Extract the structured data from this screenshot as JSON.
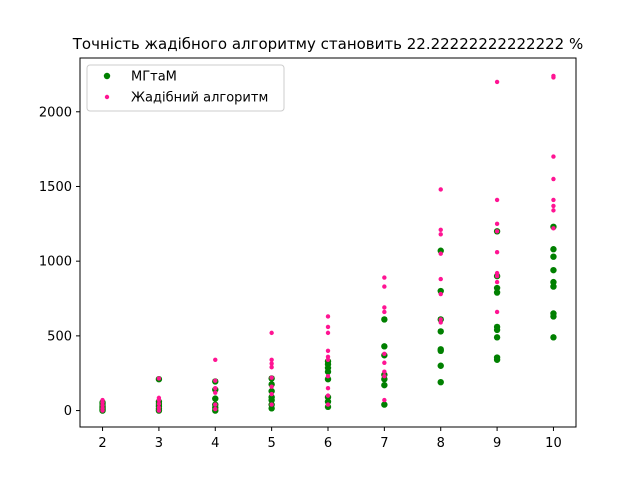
{
  "chart_data": {
    "type": "scatter",
    "title": "Точність жадібного алгоритму становить  22.22222222222222 %",
    "xlabel": "",
    "ylabel": "",
    "xlim": [
      1.6,
      10.4
    ],
    "ylim": [
      -110,
      2360
    ],
    "xticks": [
      2,
      3,
      4,
      5,
      6,
      7,
      8,
      9,
      10
    ],
    "yticks": [
      0,
      500,
      1000,
      1500,
      2000
    ],
    "grid": false,
    "legend_position": "top-left",
    "series": [
      {
        "name": "МГтаМ",
        "color": "#008000",
        "points": [
          [
            2,
            0
          ],
          [
            2,
            10
          ],
          [
            2,
            20
          ],
          [
            2,
            30
          ],
          [
            2,
            45
          ],
          [
            2,
            55
          ],
          [
            3,
            0
          ],
          [
            3,
            15
          ],
          [
            3,
            30
          ],
          [
            3,
            45
          ],
          [
            3,
            60
          ],
          [
            3,
            210
          ],
          [
            4,
            0
          ],
          [
            4,
            20
          ],
          [
            4,
            40
          ],
          [
            4,
            80
          ],
          [
            4,
            140
          ],
          [
            4,
            195
          ],
          [
            5,
            15
          ],
          [
            5,
            40
          ],
          [
            5,
            70
          ],
          [
            5,
            90
          ],
          [
            5,
            130
          ],
          [
            5,
            175
          ],
          [
            5,
            215
          ],
          [
            6,
            25
          ],
          [
            6,
            60
          ],
          [
            6,
            90
          ],
          [
            6,
            210
          ],
          [
            6,
            260
          ],
          [
            6,
            285
          ],
          [
            6,
            310
          ],
          [
            6,
            330
          ],
          [
            7,
            40
          ],
          [
            7,
            170
          ],
          [
            7,
            210
          ],
          [
            7,
            240
          ],
          [
            7,
            370
          ],
          [
            7,
            430
          ],
          [
            7,
            610
          ],
          [
            8,
            190
          ],
          [
            8,
            300
          ],
          [
            8,
            400
          ],
          [
            8,
            410
          ],
          [
            8,
            530
          ],
          [
            8,
            610
          ],
          [
            8,
            800
          ],
          [
            8,
            1070
          ],
          [
            9,
            340
          ],
          [
            9,
            355
          ],
          [
            9,
            490
          ],
          [
            9,
            540
          ],
          [
            9,
            560
          ],
          [
            9,
            790
          ],
          [
            9,
            820
          ],
          [
            9,
            900
          ],
          [
            9,
            1200
          ],
          [
            10,
            490
          ],
          [
            10,
            630
          ],
          [
            10,
            650
          ],
          [
            10,
            830
          ],
          [
            10,
            860
          ],
          [
            10,
            940
          ],
          [
            10,
            1030
          ],
          [
            10,
            1080
          ],
          [
            10,
            1230
          ]
        ]
      },
      {
        "name": "Жадібний алгоритм",
        "color": "#ff1493",
        "points": [
          [
            2,
            0
          ],
          [
            2,
            15
          ],
          [
            2,
            35
          ],
          [
            2,
            55
          ],
          [
            2,
            70
          ],
          [
            3,
            0
          ],
          [
            3,
            20
          ],
          [
            3,
            45
          ],
          [
            3,
            70
          ],
          [
            3,
            85
          ],
          [
            3,
            215
          ],
          [
            4,
            10
          ],
          [
            4,
            40
          ],
          [
            4,
            120
          ],
          [
            4,
            150
          ],
          [
            4,
            200
          ],
          [
            4,
            340
          ],
          [
            5,
            40
          ],
          [
            5,
            110
          ],
          [
            5,
            160
          ],
          [
            5,
            220
          ],
          [
            5,
            290
          ],
          [
            5,
            315
          ],
          [
            5,
            340
          ],
          [
            5,
            520
          ],
          [
            6,
            40
          ],
          [
            6,
            100
          ],
          [
            6,
            150
          ],
          [
            6,
            230
          ],
          [
            6,
            340
          ],
          [
            6,
            360
          ],
          [
            6,
            400
          ],
          [
            6,
            520
          ],
          [
            6,
            560
          ],
          [
            6,
            630
          ],
          [
            7,
            70
          ],
          [
            7,
            230
          ],
          [
            7,
            260
          ],
          [
            7,
            320
          ],
          [
            7,
            380
          ],
          [
            7,
            660
          ],
          [
            7,
            690
          ],
          [
            7,
            830
          ],
          [
            7,
            890
          ],
          [
            8,
            590
          ],
          [
            8,
            610
          ],
          [
            8,
            780
          ],
          [
            8,
            880
          ],
          [
            8,
            1050
          ],
          [
            8,
            1180
          ],
          [
            8,
            1210
          ],
          [
            8,
            1480
          ],
          [
            9,
            660
          ],
          [
            9,
            860
          ],
          [
            9,
            900
          ],
          [
            9,
            920
          ],
          [
            9,
            1060
          ],
          [
            9,
            1200
          ],
          [
            9,
            1250
          ],
          [
            9,
            1410
          ],
          [
            9,
            2200
          ],
          [
            10,
            1220
          ],
          [
            10,
            1340
          ],
          [
            10,
            1370
          ],
          [
            10,
            1410
          ],
          [
            10,
            1550
          ],
          [
            10,
            1700
          ],
          [
            10,
            2230
          ],
          [
            10,
            2240
          ]
        ]
      }
    ]
  }
}
